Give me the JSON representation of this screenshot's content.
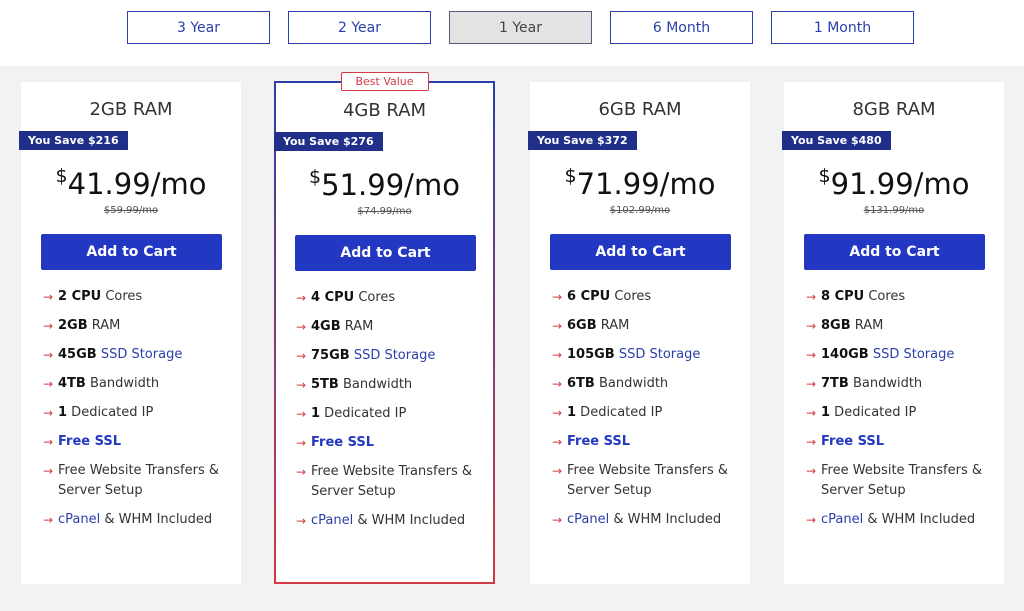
{
  "periods": [
    {
      "label": "3 Year",
      "active": false
    },
    {
      "label": "2 Year",
      "active": false
    },
    {
      "label": "1 Year",
      "active": true
    },
    {
      "label": "6 Month",
      "active": false
    },
    {
      "label": "1 Month",
      "active": false
    }
  ],
  "best_value_label": "Best Value",
  "colors": {
    "accent": "#2238c2",
    "badge": "#1f2f8a",
    "arrow": "#d33a45"
  },
  "plans": [
    {
      "title": "2GB RAM",
      "save": "You Save $216",
      "currency": "$",
      "price": "41.99",
      "per": "/mo",
      "old_price": "$59.99/mo",
      "cta": "Add to Cart",
      "cpu_num": "2 CPU",
      "cpu_label": " Cores",
      "ram_num": "2GB",
      "ram_label": " RAM",
      "storage_num": "45GB",
      "storage_label": "SSD Storage",
      "bw_num": "4TB",
      "bw_label": " Bandwidth",
      "ip_num": "1",
      "ip_label": " Dedicated IP",
      "ssl": "Free SSL",
      "transfers": "Free Website Transfers & Server Setup",
      "cpanel": "cPanel",
      "cpanel_rest": " & WHM Included"
    },
    {
      "title": "4GB RAM",
      "save": "You Save $276",
      "currency": "$",
      "price": "51.99",
      "per": "/mo",
      "old_price": "$74.99/mo",
      "cta": "Add to Cart",
      "cpu_num": "4 CPU",
      "cpu_label": " Cores",
      "ram_num": "4GB",
      "ram_label": " RAM",
      "storage_num": "75GB",
      "storage_label": "SSD Storage",
      "bw_num": "5TB",
      "bw_label": " Bandwidth",
      "ip_num": "1",
      "ip_label": " Dedicated IP",
      "ssl": "Free SSL",
      "transfers": "Free Website Transfers & Server Setup",
      "cpanel": "cPanel",
      "cpanel_rest": " & WHM Included"
    },
    {
      "title": "6GB RAM",
      "save": "You Save $372",
      "currency": "$",
      "price": "71.99",
      "per": "/mo",
      "old_price": "$102.99/mo",
      "cta": "Add to Cart",
      "cpu_num": "6 CPU",
      "cpu_label": " Cores",
      "ram_num": "6GB",
      "ram_label": " RAM",
      "storage_num": "105GB",
      "storage_label": "SSD Storage",
      "bw_num": "6TB",
      "bw_label": " Bandwidth",
      "ip_num": "1",
      "ip_label": " Dedicated IP",
      "ssl": "Free SSL",
      "transfers": "Free Website Transfers & Server Setup",
      "cpanel": "cPanel",
      "cpanel_rest": " & WHM Included"
    },
    {
      "title": "8GB RAM",
      "save": "You Save $480",
      "currency": "$",
      "price": "91.99",
      "per": "/mo",
      "old_price": "$131.99/mo",
      "cta": "Add to Cart",
      "cpu_num": "8 CPU",
      "cpu_label": " Cores",
      "ram_num": "8GB",
      "ram_label": " RAM",
      "storage_num": "140GB",
      "storage_label": "SSD Storage",
      "bw_num": "7TB",
      "bw_label": " Bandwidth",
      "ip_num": "1",
      "ip_label": " Dedicated IP",
      "ssl": "Free SSL",
      "transfers": "Free Website Transfers & Server Setup",
      "cpanel": "cPanel",
      "cpanel_rest": " & WHM Included"
    }
  ]
}
